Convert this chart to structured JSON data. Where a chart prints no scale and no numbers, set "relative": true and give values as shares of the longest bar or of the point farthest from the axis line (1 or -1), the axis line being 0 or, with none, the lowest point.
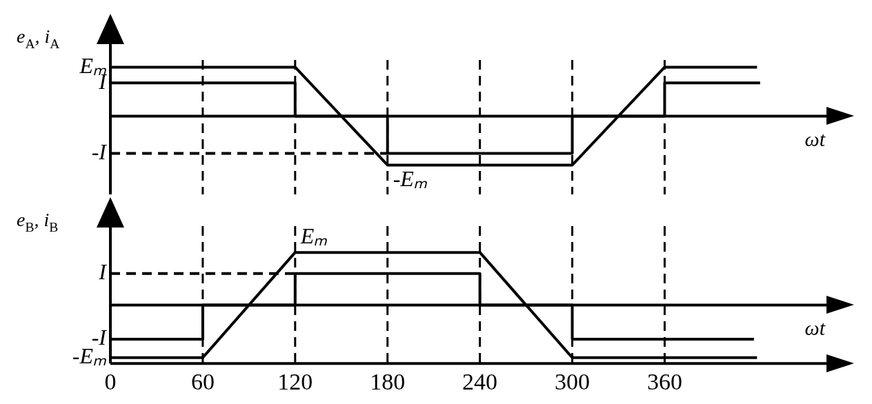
{
  "chart_data": [
    {
      "type": "line",
      "relative": true,
      "ylabel": "e$_{A}$, i$_{A}$",
      "xlabel": "ωt",
      "xlim": [
        0,
        466
      ],
      "xticks": [
        0,
        60,
        120,
        180,
        240,
        300,
        360
      ],
      "annotations": [
        {
          "text": "Eₘ",
          "x": 0,
          "y": 1
        },
        {
          "text": "I",
          "x": 0,
          "y": 0.68
        },
        {
          "text": "-I",
          "x": 0,
          "y": -0.76
        },
        {
          "text": "-Eₘ",
          "x": 180,
          "y": -1
        }
      ],
      "tick_labels": false,
      "grid": false,
      "legend": false,
      "marker": "none",
      "series": [
        {
          "color": "#000000",
          "line_style": "solid",
          "x": [
            0,
            120,
            180,
            300,
            360,
            420
          ],
          "values": [
            1,
            1,
            -1,
            -1,
            1,
            1
          ]
        },
        {
          "color": "#000000",
          "line_style": "solid",
          "x": [
            0,
            120,
            120,
            180,
            180,
            300,
            300,
            360,
            360,
            422
          ],
          "values": [
            0.68,
            0.68,
            0,
            0,
            -0.76,
            -0.76,
            0,
            0,
            0.68,
            0.68
          ]
        },
        {
          "color": "#000000",
          "line_style": "dashed",
          "x": [
            0,
            180
          ],
          "values": [
            -0.76,
            -0.76
          ]
        }
      ],
      "ref_lines": [
        {
          "axis": "x",
          "value": 60,
          "line_style": "dashed",
          "color": "#000000"
        },
        {
          "axis": "x",
          "value": 120,
          "line_style": "dashed",
          "color": "#000000"
        },
        {
          "axis": "x",
          "value": 180,
          "line_style": "dashed",
          "color": "#000000"
        },
        {
          "axis": "x",
          "value": 240,
          "line_style": "dashed",
          "color": "#000000"
        },
        {
          "axis": "x",
          "value": 300,
          "line_style": "dashed",
          "color": "#000000"
        },
        {
          "axis": "x",
          "value": 360,
          "line_style": "dashed",
          "color": "#000000"
        }
      ]
    },
    {
      "type": "line",
      "relative": true,
      "ylabel": "e$_{B}$, i$_{B}$",
      "xlabel": "ωt",
      "xlim": [
        0,
        466
      ],
      "xticks": [
        0,
        60,
        120,
        180,
        240,
        300,
        360
      ],
      "annotations": [
        {
          "text": "Eₘ",
          "x": 120,
          "y": 1
        },
        {
          "text": "I",
          "x": 0,
          "y": 0.6
        },
        {
          "text": "-I",
          "x": 0,
          "y": -0.65
        },
        {
          "text": "-Eₘ",
          "x": 0,
          "y": -1
        }
      ],
      "tick_labels": "x",
      "grid": false,
      "legend": false,
      "marker": "none",
      "series": [
        {
          "color": "#000000",
          "line_style": "solid",
          "x": [
            0,
            60,
            120,
            240,
            300,
            420
          ],
          "values": [
            -1,
            -1,
            1,
            1,
            -1,
            -1
          ]
        },
        {
          "color": "#000000",
          "line_style": "solid",
          "x": [
            0,
            60,
            60,
            120,
            120,
            240,
            240,
            300,
            300,
            418
          ],
          "values": [
            -0.65,
            -0.65,
            0,
            0,
            0.6,
            0.6,
            0,
            0,
            -0.65,
            -0.65
          ]
        },
        {
          "color": "#000000",
          "line_style": "dashed",
          "x": [
            0,
            120
          ],
          "values": [
            0.6,
            0.6
          ]
        }
      ],
      "ref_lines": [
        {
          "axis": "x",
          "value": 60,
          "line_style": "dashed",
          "color": "#000000"
        },
        {
          "axis": "x",
          "value": 120,
          "line_style": "dashed",
          "color": "#000000"
        },
        {
          "axis": "x",
          "value": 180,
          "line_style": "dashed",
          "color": "#000000"
        },
        {
          "axis": "x",
          "value": 240,
          "line_style": "dashed",
          "color": "#000000"
        },
        {
          "axis": "x",
          "value": 300,
          "line_style": "dashed",
          "color": "#000000"
        },
        {
          "axis": "x",
          "value": 360,
          "line_style": "dashed",
          "color": "#000000"
        }
      ]
    }
  ]
}
